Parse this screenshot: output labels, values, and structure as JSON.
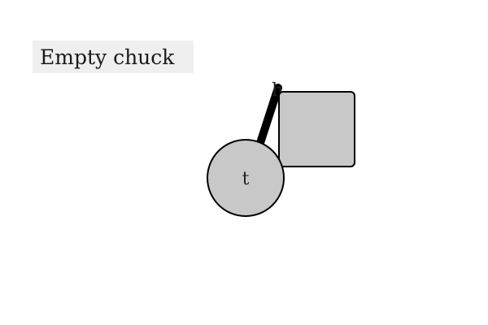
{
  "title": "Empty chuck",
  "nodes": {
    "circle_label": "t",
    "rect_label": "h"
  },
  "colors": {
    "node_fill": "#c8c8c8",
    "stroke": "#000000",
    "title_bg": "#efefef",
    "text": "#1a1a1a"
  }
}
